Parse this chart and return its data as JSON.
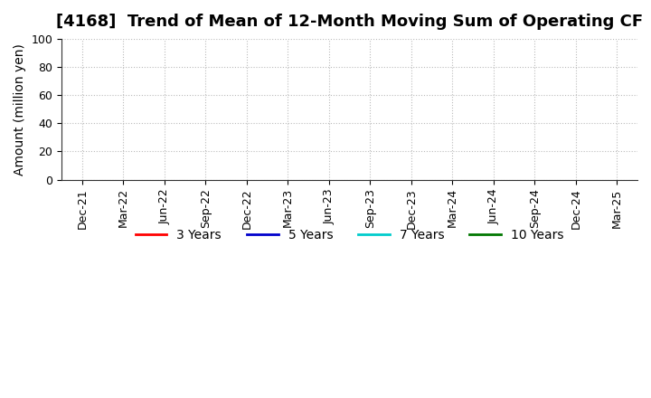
{
  "title": "[4168]  Trend of Mean of 12-Month Moving Sum of Operating CF",
  "ylabel": "Amount (million yen)",
  "ylim": [
    0,
    100
  ],
  "yticks": [
    0,
    20,
    40,
    60,
    80,
    100
  ],
  "x_labels": [
    "Dec-21",
    "Mar-22",
    "Jun-22",
    "Sep-22",
    "Dec-22",
    "Mar-23",
    "Jun-23",
    "Sep-23",
    "Dec-23",
    "Mar-24",
    "Jun-24",
    "Sep-24",
    "Dec-24",
    "Mar-25"
  ],
  "background_color": "#ffffff",
  "grid_color": "#bbbbbb",
  "legend_entries": [
    {
      "label": "3 Years",
      "color": "#ff0000"
    },
    {
      "label": "5 Years",
      "color": "#0000cc"
    },
    {
      "label": "7 Years",
      "color": "#00cccc"
    },
    {
      "label": "10 Years",
      "color": "#007700"
    }
  ],
  "title_fontsize": 13,
  "axis_label_fontsize": 10,
  "tick_fontsize": 9,
  "legend_fontsize": 10
}
